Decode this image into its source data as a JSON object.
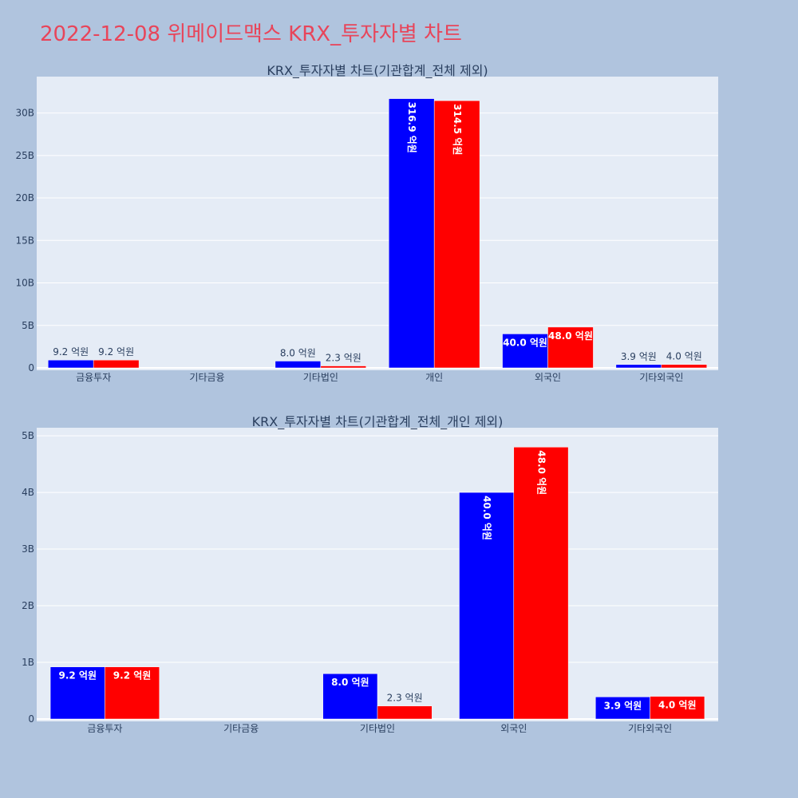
{
  "title": "2022-12-08 위메이드맥스 KRX_투자자별 차트",
  "colors": {
    "series_a": "#0000ff",
    "series_b": "#ff0000",
    "page_bg": "#b0c4de",
    "plot_bg": "#e5ecf6",
    "title": "#e8455a"
  },
  "chart_data": [
    {
      "type": "bar",
      "title": "KRX_투자자별 차트(기관합계_전체 제외)",
      "categories": [
        "금융투자",
        "기타금융",
        "기타법인",
        "개인",
        "외국인",
        "기타외국인"
      ],
      "ylim": [
        0,
        34000000000
      ],
      "yticks": [
        0,
        5000000000,
        10000000000,
        15000000000,
        20000000000,
        25000000000,
        30000000000
      ],
      "ytick_labels": [
        "0",
        "5B",
        "10B",
        "15B",
        "20B",
        "25B",
        "30B"
      ],
      "grid": true,
      "series": [
        {
          "values": [
            920000000,
            0,
            800000000,
            31690000000,
            4000000000,
            390000000
          ],
          "labels": [
            "9.2 억원",
            "",
            "8.0 억원",
            "316.9 억원",
            "40.0 억원",
            "3.9 억원"
          ]
        },
        {
          "values": [
            920000000,
            0,
            230000000,
            31450000000,
            4800000000,
            400000000
          ],
          "labels": [
            "9.2 억원",
            "",
            "2.3 억원",
            "314.5 억원",
            "48.0 억원",
            "4.0 억원"
          ]
        }
      ]
    },
    {
      "type": "bar",
      "title": "KRX_투자자별 차트(기관합계_전체_개인 제외)",
      "categories": [
        "금융투자",
        "기타금융",
        "기타법인",
        "외국인",
        "기타외국인"
      ],
      "ylim": [
        0,
        5100000000
      ],
      "yticks": [
        0,
        1000000000,
        2000000000,
        3000000000,
        4000000000,
        5000000000
      ],
      "ytick_labels": [
        "0",
        "1B",
        "2B",
        "3B",
        "4B",
        "5B"
      ],
      "grid": true,
      "series": [
        {
          "values": [
            920000000,
            0,
            800000000,
            4000000000,
            390000000
          ],
          "labels": [
            "9.2 억원",
            "",
            "8.0 억원",
            "40.0 억원",
            "3.9 억원"
          ]
        },
        {
          "values": [
            920000000,
            0,
            230000000,
            4800000000,
            400000000
          ],
          "labels": [
            "9.2 억원",
            "",
            "2.3 억원",
            "48.0 억원",
            "4.0 억원"
          ]
        }
      ]
    }
  ]
}
